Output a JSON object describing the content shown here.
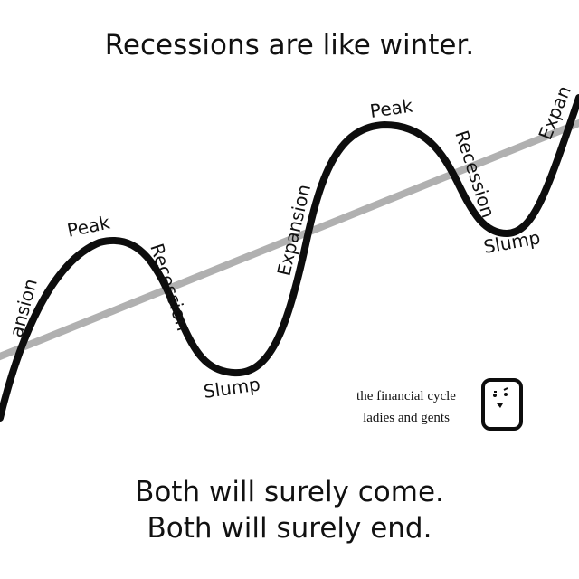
{
  "title": "Recessions are like winter.",
  "footer": {
    "line1": "Both will surely come.",
    "line2": "Both will surely end."
  },
  "labels": {
    "expansion_left": "ansion",
    "peak_1": "Peak",
    "recession_1": "Recession",
    "slump_1": "Slump",
    "expansion_mid": "Expansion",
    "peak_2": "Peak",
    "recession_2": "Recession",
    "slump_2": "Slump",
    "expansion_right": "Expan"
  },
  "caption": {
    "line1": "the financial cycle",
    "line2": "ladies and gents"
  },
  "colors": {
    "cycle_line": "#0d0d0d",
    "trend_line": "#b0b0b0",
    "text": "#111111"
  },
  "icons": {
    "character": "small-rounded-box-character-icon"
  }
}
